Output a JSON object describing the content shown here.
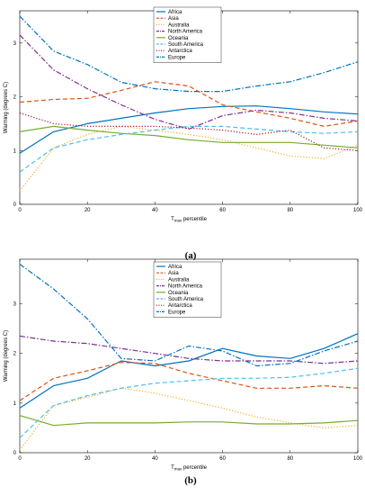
{
  "chart_data": [
    {
      "type": "line",
      "panel_label": "(a)",
      "xlabel_prefix": "T",
      "xlabel_sub": "max",
      "xlabel_suffix": " percentile",
      "ylabel": "Warming (degrees C)",
      "xlim": [
        0,
        100
      ],
      "ylim": [
        0,
        3.6
      ],
      "xticks": [
        0,
        20,
        40,
        60,
        80,
        100
      ],
      "yticks": [
        1,
        2,
        3
      ],
      "legend_position": "top-center",
      "series": [
        {
          "name": "Africa",
          "color": "#0072BD",
          "dash": "solid",
          "x": [
            0,
            10,
            20,
            30,
            40,
            50,
            60,
            70,
            80,
            90,
            100
          ],
          "y": [
            0.95,
            1.35,
            1.5,
            1.6,
            1.7,
            1.78,
            1.82,
            1.83,
            1.78,
            1.72,
            1.68
          ]
        },
        {
          "name": "Asia",
          "color": "#D95319",
          "dash": "dash",
          "x": [
            0,
            10,
            20,
            30,
            40,
            50,
            60,
            70,
            80,
            90,
            100
          ],
          "y": [
            1.9,
            1.95,
            1.97,
            2.12,
            2.28,
            2.2,
            1.85,
            1.72,
            1.6,
            1.45,
            1.55
          ]
        },
        {
          "name": "Australia",
          "color": "#EDB120",
          "dash": "dot",
          "x": [
            0,
            10,
            20,
            30,
            40,
            50,
            60,
            70,
            80,
            90,
            100
          ],
          "y": [
            0.25,
            1.05,
            1.3,
            1.45,
            1.38,
            1.3,
            1.2,
            1.05,
            0.9,
            0.85,
            1.1
          ]
        },
        {
          "name": "North America",
          "color": "#7E2F8E",
          "dash": "dashdot",
          "x": [
            0,
            10,
            20,
            30,
            40,
            50,
            60,
            70,
            80,
            90,
            100
          ],
          "y": [
            3.15,
            2.5,
            2.15,
            1.85,
            1.58,
            1.4,
            1.65,
            1.75,
            1.7,
            1.6,
            1.55
          ]
        },
        {
          "name": "Oceania",
          "color": "#77AC30",
          "dash": "solid",
          "x": [
            0,
            10,
            20,
            30,
            40,
            50,
            60,
            70,
            80,
            90,
            100
          ],
          "y": [
            1.35,
            1.45,
            1.38,
            1.32,
            1.28,
            1.2,
            1.15,
            1.15,
            1.15,
            1.1,
            1.05
          ]
        },
        {
          "name": "South America",
          "color": "#4DBEEE",
          "dash": "dash",
          "x": [
            0,
            10,
            20,
            30,
            40,
            50,
            60,
            70,
            80,
            90,
            100
          ],
          "y": [
            0.6,
            1.05,
            1.2,
            1.3,
            1.38,
            1.45,
            1.45,
            1.4,
            1.35,
            1.32,
            1.35
          ]
        },
        {
          "name": "Antarctica",
          "color": "#A2142F",
          "dash": "dot",
          "x": [
            0,
            10,
            20,
            30,
            40,
            50,
            60,
            70,
            80,
            90,
            100
          ],
          "y": [
            1.7,
            1.5,
            1.45,
            1.45,
            1.45,
            1.42,
            1.38,
            1.3,
            1.38,
            1.05,
            1.0
          ]
        },
        {
          "name": "Europe",
          "color": "#0072BD",
          "dash": "dashdot",
          "x": [
            0,
            10,
            20,
            30,
            40,
            50,
            60,
            70,
            80,
            90,
            100
          ],
          "y": [
            3.5,
            2.85,
            2.6,
            2.27,
            2.15,
            2.1,
            2.1,
            2.2,
            2.28,
            2.45,
            2.65
          ]
        }
      ]
    },
    {
      "type": "line",
      "panel_label": "(b)",
      "xlabel_prefix": "T",
      "xlabel_sub": "max",
      "xlabel_suffix": " percentile",
      "ylabel": "Warming (degrees C)",
      "xlim": [
        0,
        100
      ],
      "ylim": [
        0,
        3.9
      ],
      "xticks": [
        0,
        20,
        40,
        60,
        80,
        100
      ],
      "yticks": [
        1,
        2,
        3
      ],
      "legend_position": "top-center",
      "series": [
        {
          "name": "Africa",
          "color": "#0072BD",
          "dash": "solid",
          "x": [
            0,
            10,
            20,
            30,
            40,
            50,
            60,
            70,
            80,
            90,
            100
          ],
          "y": [
            0.9,
            1.35,
            1.5,
            1.85,
            1.75,
            1.85,
            2.1,
            1.95,
            1.9,
            2.1,
            2.4
          ]
        },
        {
          "name": "Asia",
          "color": "#D95319",
          "dash": "dash",
          "x": [
            0,
            10,
            20,
            30,
            40,
            50,
            60,
            70,
            80,
            90,
            100
          ],
          "y": [
            1.05,
            1.5,
            1.65,
            1.82,
            1.8,
            1.6,
            1.45,
            1.3,
            1.3,
            1.35,
            1.3
          ]
        },
        {
          "name": "Australia",
          "color": "#EDB120",
          "dash": "dot",
          "x": [
            0,
            10,
            20,
            30,
            40,
            50,
            60,
            70,
            80,
            90,
            100
          ],
          "y": [
            0.05,
            0.95,
            1.12,
            1.3,
            1.2,
            1.05,
            0.9,
            0.72,
            0.6,
            0.5,
            0.55
          ]
        },
        {
          "name": "North America",
          "color": "#7E2F8E",
          "dash": "dashdot",
          "x": [
            0,
            10,
            20,
            30,
            40,
            50,
            60,
            70,
            80,
            90,
            100
          ],
          "y": [
            2.35,
            2.25,
            2.2,
            2.1,
            2.0,
            1.9,
            1.85,
            1.85,
            1.85,
            1.8,
            1.85
          ]
        },
        {
          "name": "Oceania",
          "color": "#77AC30",
          "dash": "solid",
          "x": [
            0,
            10,
            20,
            30,
            40,
            50,
            60,
            70,
            80,
            90,
            100
          ],
          "y": [
            0.75,
            0.55,
            0.6,
            0.6,
            0.6,
            0.62,
            0.62,
            0.58,
            0.58,
            0.6,
            0.65
          ]
        },
        {
          "name": "South America",
          "color": "#4DBEEE",
          "dash": "dash",
          "x": [
            0,
            10,
            20,
            30,
            40,
            50,
            60,
            70,
            80,
            90,
            100
          ],
          "y": [
            0.3,
            0.95,
            1.15,
            1.3,
            1.4,
            1.45,
            1.5,
            1.5,
            1.52,
            1.6,
            1.7
          ]
        },
        {
          "name": "Antarctica",
          "color": "#A2142F",
          "dash": "dot",
          "x": [],
          "y": []
        },
        {
          "name": "Europe",
          "color": "#0072BD",
          "dash": "dashdot",
          "x": [
            0,
            10,
            20,
            30,
            40,
            50,
            60,
            70,
            80,
            90,
            100
          ],
          "y": [
            3.8,
            3.3,
            2.7,
            1.9,
            1.85,
            2.15,
            2.05,
            1.75,
            1.8,
            2.05,
            2.25
          ]
        }
      ]
    }
  ]
}
